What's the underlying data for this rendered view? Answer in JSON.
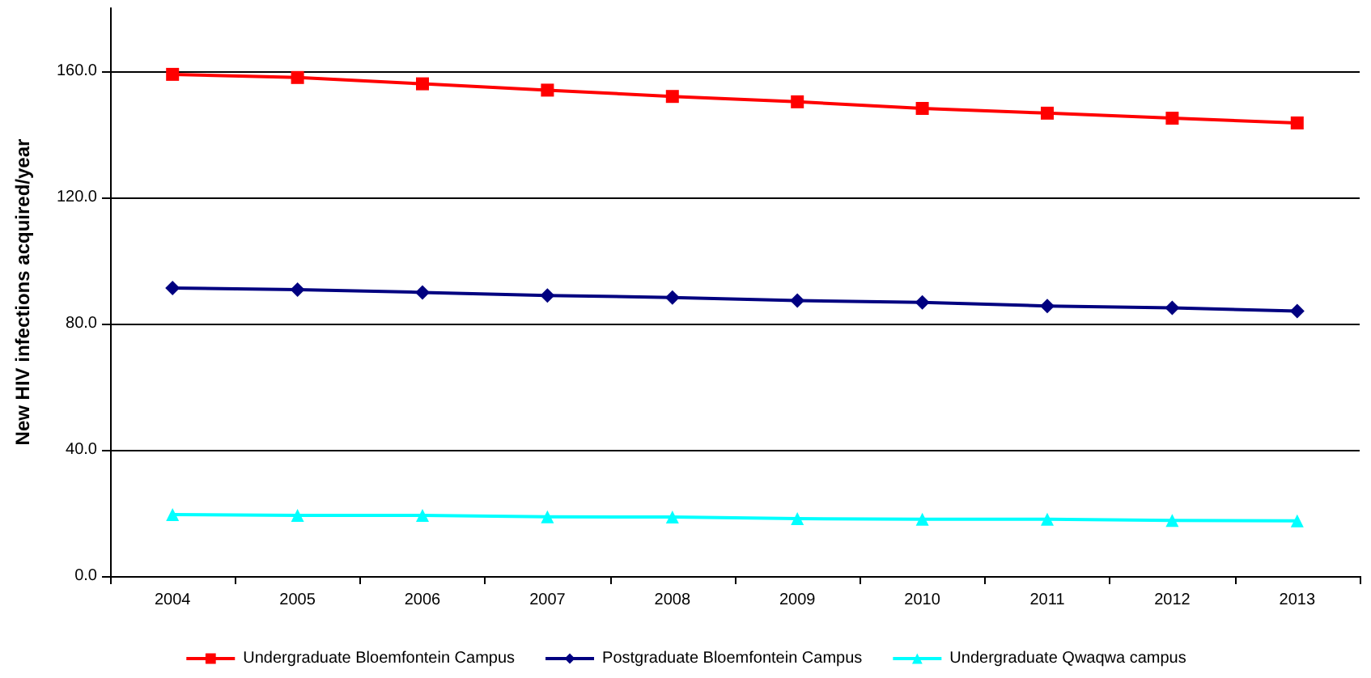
{
  "chart_data": {
    "type": "line",
    "ylabel": "New HIV infections acquired/year",
    "categories": [
      "2004",
      "2005",
      "2006",
      "2007",
      "2008",
      "2009",
      "2010",
      "2011",
      "2012",
      "2013"
    ],
    "series": [
      {
        "name": "Undergraduate Bloemfontein Campus",
        "color": "#ff0000",
        "marker": "square",
        "values": [
          159.0,
          158.0,
          156.0,
          154.0,
          152.0,
          150.3,
          148.2,
          146.7,
          145.1,
          143.6
        ]
      },
      {
        "name": "Postgraduate Bloemfontein Campus",
        "color": "#000080",
        "marker": "diamond",
        "values": [
          91.3,
          90.8,
          89.9,
          88.9,
          88.3,
          87.3,
          86.7,
          85.6,
          85.0,
          84.0
        ]
      },
      {
        "name": "Undergraduate Qwaqwa campus",
        "color": "#00ffff",
        "marker": "triangle",
        "values": [
          19.5,
          19.2,
          19.2,
          18.8,
          18.7,
          18.2,
          18.0,
          18.0,
          17.6,
          17.5
        ]
      }
    ],
    "ylim": [
      0,
      180
    ],
    "yticks": [
      {
        "value": 0,
        "label": "0.0"
      },
      {
        "value": 40,
        "label": "40.0"
      },
      {
        "value": 80,
        "label": "80.0"
      },
      {
        "value": 120,
        "label": "120.0"
      },
      {
        "value": 160,
        "label": "160.0"
      }
    ],
    "grid": "y",
    "legend": "bottom",
    "line_style": "solid"
  }
}
